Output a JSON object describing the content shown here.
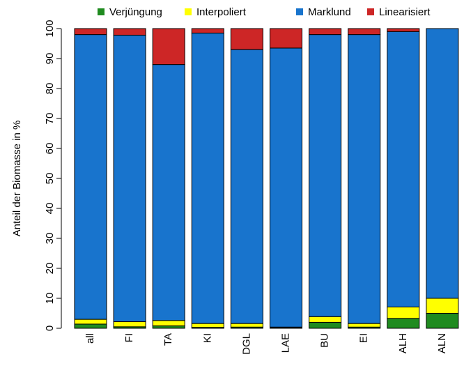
{
  "chart_data": {
    "type": "stacked-bar",
    "ylabel": "Anteil der Biomasse in %",
    "categories": [
      "all",
      "FI",
      "TA",
      "KI",
      "DGL",
      "LAE",
      "BU",
      "EI",
      "ALH",
      "ALN"
    ],
    "series": [
      {
        "name": "Verjüngung",
        "color": "#1f8b1f",
        "values": [
          1.4,
          0.5,
          0.8,
          0.3,
          0.4,
          0.3,
          2.0,
          0.4,
          3.3,
          5.0
        ]
      },
      {
        "name": "Interpoliert",
        "color": "#ffff00",
        "values": [
          1.6,
          1.7,
          1.8,
          1.3,
          1.2,
          0.1,
          1.9,
          1.2,
          3.8,
          5.0
        ]
      },
      {
        "name": "Marklund",
        "color": "#1874cd",
        "values": [
          95.0,
          95.6,
          85.4,
          96.9,
          91.4,
          93.1,
          94.1,
          96.4,
          91.9,
          90.0
        ]
      },
      {
        "name": "Linearisiert",
        "color": "#cd2626",
        "values": [
          2.0,
          2.2,
          12.0,
          1.5,
          7.0,
          6.5,
          2.0,
          2.0,
          1.0,
          0.0
        ]
      }
    ],
    "ylim": [
      0,
      100
    ],
    "yticks": [
      0,
      10,
      20,
      30,
      40,
      50,
      60,
      70,
      80,
      90,
      100
    ]
  }
}
